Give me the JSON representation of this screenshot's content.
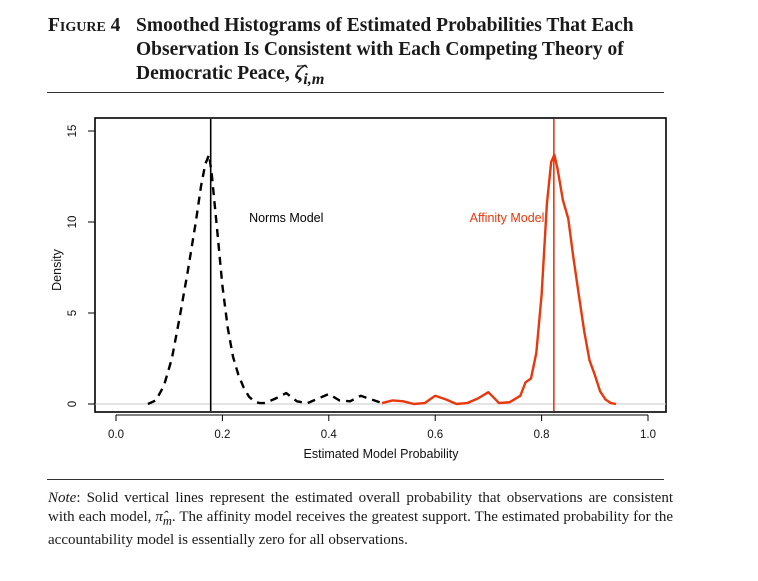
{
  "figure": {
    "label": "Figure 4",
    "title": "Smoothed Histograms of Estimated Probabilities That Each Observation Is Consistent with Each Competing Theory of Democratic Peace,",
    "symbol": "ζ̂",
    "subscript": "i,m"
  },
  "note": {
    "lead": "Note",
    "text_1": ": Solid vertical lines represent the estimated overall probability that observations are consistent with each model, ",
    "pi_symbol": "π̂",
    "pi_subscript": "m",
    "text_2": ". The affinity model receives the greatest support. The estimated probability for the accountability model is essentially zero for all observations."
  },
  "chart_data": {
    "type": "line",
    "xlabel": "Estimated Model Probability",
    "ylabel": "Density",
    "xlim": [
      0,
      1
    ],
    "ylim": [
      0,
      15
    ],
    "xticks": [
      "0.0",
      "0.2",
      "0.4",
      "0.6",
      "0.8",
      "1.0"
    ],
    "yticks": [
      "0",
      "5",
      "10",
      "15"
    ],
    "grid": false,
    "series": [
      {
        "name": "Norms Model",
        "color": "#000000",
        "style": "dashed",
        "vline": 0.178,
        "label_at": [
          0.32,
          10.0
        ],
        "x": [
          0.06,
          0.075,
          0.09,
          0.105,
          0.12,
          0.135,
          0.15,
          0.16,
          0.168,
          0.175,
          0.18,
          0.19,
          0.2,
          0.21,
          0.22,
          0.23,
          0.24,
          0.25,
          0.26,
          0.27,
          0.28,
          0.3,
          0.32,
          0.34,
          0.36,
          0.38,
          0.4,
          0.42,
          0.44,
          0.46,
          0.48,
          0.5
        ],
        "y": [
          0.0,
          0.2,
          1.0,
          2.5,
          4.8,
          7.3,
          10.0,
          12.0,
          13.2,
          13.7,
          12.6,
          9.6,
          6.5,
          4.2,
          2.6,
          1.6,
          0.9,
          0.4,
          0.15,
          0.05,
          0.05,
          0.3,
          0.6,
          0.15,
          0.05,
          0.3,
          0.55,
          0.2,
          0.15,
          0.45,
          0.25,
          0.05
        ]
      },
      {
        "name": "Affinity Model",
        "color": "#e8380d",
        "style": "solid",
        "vline": 0.823,
        "label_at": [
          0.735,
          10.0
        ],
        "x": [
          0.5,
          0.52,
          0.54,
          0.56,
          0.58,
          0.6,
          0.62,
          0.64,
          0.66,
          0.68,
          0.7,
          0.72,
          0.74,
          0.76,
          0.77,
          0.78,
          0.79,
          0.8,
          0.81,
          0.818,
          0.824,
          0.83,
          0.84,
          0.85,
          0.86,
          0.87,
          0.88,
          0.89,
          0.9,
          0.91,
          0.92,
          0.93,
          0.94
        ],
        "y": [
          0.05,
          0.2,
          0.15,
          0.0,
          0.05,
          0.45,
          0.25,
          0.0,
          0.05,
          0.3,
          0.65,
          0.05,
          0.1,
          0.45,
          1.2,
          1.4,
          2.8,
          6.0,
          11.0,
          13.3,
          13.7,
          12.9,
          11.2,
          10.2,
          8.0,
          6.0,
          4.0,
          2.4,
          1.6,
          0.7,
          0.25,
          0.05,
          0.0
        ]
      }
    ]
  }
}
